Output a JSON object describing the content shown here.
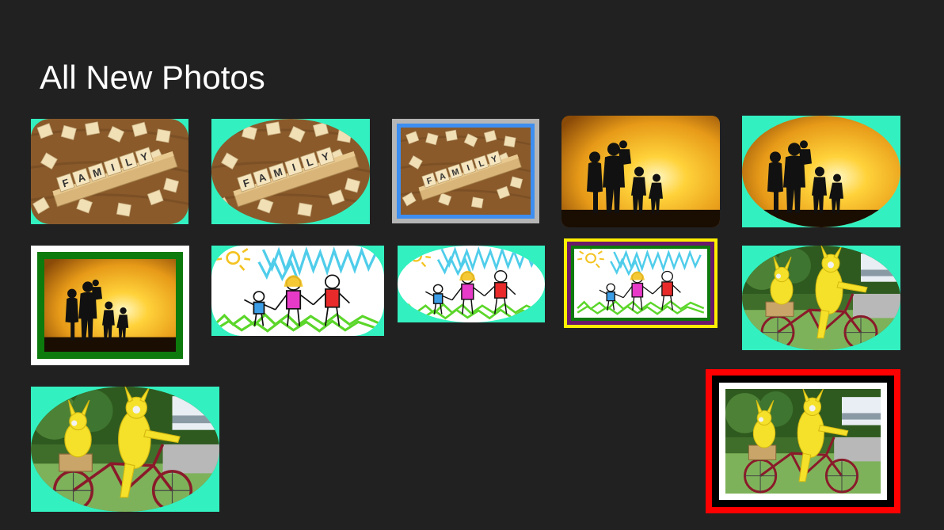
{
  "page": {
    "title": "All New Photos"
  },
  "photos": [
    {
      "id": "scrabble-1",
      "subject": "scrabble tiles spelling FAMILY",
      "frame": "rounded-oval on mint"
    },
    {
      "id": "scrabble-2",
      "subject": "scrabble tiles spelling FAMILY",
      "frame": "oval on mint"
    },
    {
      "id": "scrabble-3",
      "subject": "scrabble tiles spelling FAMILY",
      "frame": "blue and gray border"
    },
    {
      "id": "sunset-1",
      "subject": "family silhouette at sunset",
      "frame": "rounded corners"
    },
    {
      "id": "sunset-2",
      "subject": "family silhouette at sunset",
      "frame": "oval on mint"
    },
    {
      "id": "sunset-3",
      "subject": "family silhouette at sunset",
      "frame": "white and green border"
    },
    {
      "id": "drawing-1",
      "subject": "child drawing of family",
      "frame": "rounded on mint"
    },
    {
      "id": "drawing-2",
      "subject": "child drawing of family",
      "frame": "oval on mint"
    },
    {
      "id": "drawing-3",
      "subject": "child drawing of family",
      "frame": "yellow, purple and green border"
    },
    {
      "id": "bike-1",
      "subject": "pikachu costumes on bicycle",
      "frame": "oval on mint"
    },
    {
      "id": "bike-2",
      "subject": "pikachu costumes on bicycle",
      "frame": "oval on mint"
    },
    {
      "id": "bike-3",
      "subject": "pikachu costumes on bicycle",
      "frame": "red, black and white border"
    }
  ],
  "tile_letters": [
    "F",
    "A",
    "M",
    "I",
    "L",
    "Y"
  ],
  "colors": {
    "background": "#212121",
    "mint": "#33f0c0",
    "blue_frame": "#3d8ef0",
    "gray_frame": "#b5b5b5",
    "green_frame": "#0d7a0d",
    "yellow_frame": "#ffee00",
    "purple_frame": "#6a1a6a",
    "red_frame": "#ff0000"
  }
}
